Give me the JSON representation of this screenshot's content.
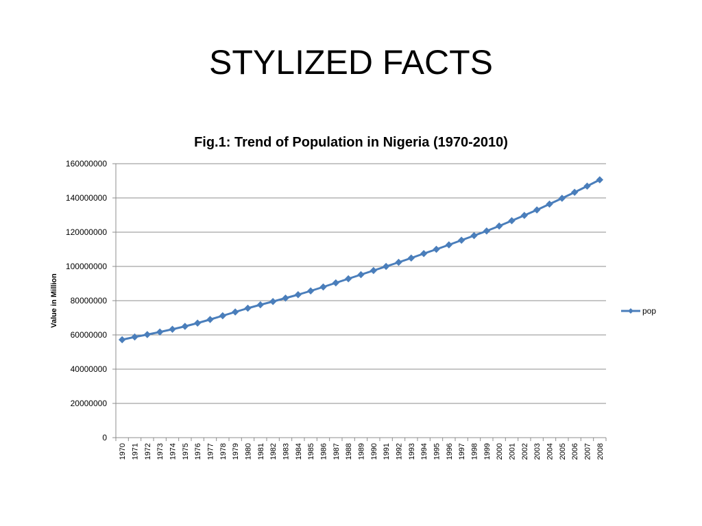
{
  "slide": {
    "title": "STYLIZED FACTS"
  },
  "chart_data": {
    "type": "line",
    "title": "Fig.1: Trend of Population in Nigeria (1970-2010)",
    "xlabel": "",
    "ylabel": "Value in Million",
    "ylim": [
      0,
      160000000
    ],
    "yticks": [
      "0",
      "20000000",
      "40000000",
      "60000000",
      "80000000",
      "100000000",
      "120000000",
      "140000000",
      "160000000"
    ],
    "grid": true,
    "legend_position": "right",
    "colors": {
      "series": "#4a7ebb",
      "grid": "#8c8c8c",
      "axis": "#8c8c8c"
    },
    "categories": [
      "1970",
      "1971",
      "1972",
      "1973",
      "1974",
      "1975",
      "1976",
      "1977",
      "1978",
      "1979",
      "1980",
      "1981",
      "1982",
      "1983",
      "1984",
      "1985",
      "1986",
      "1987",
      "1988",
      "1989",
      "1990",
      "1991",
      "1992",
      "1993",
      "1994",
      "1995",
      "1996",
      "1997",
      "1998",
      "1999",
      "2000",
      "2001",
      "2002",
      "2003",
      "2004",
      "2005",
      "2006",
      "2007",
      "2008"
    ],
    "series": [
      {
        "name": "pop",
        "values": [
          57200000,
          58800000,
          60200000,
          61700000,
          63300000,
          65000000,
          66900000,
          69000000,
          71200000,
          73400000,
          75600000,
          77600000,
          79500000,
          81500000,
          83500000,
          85700000,
          88000000,
          90400000,
          92800000,
          95200000,
          97600000,
          100000000,
          102400000,
          104900000,
          107500000,
          110000000,
          112600000,
          115300000,
          118000000,
          120700000,
          123600000,
          126700000,
          129800000,
          133000000,
          136400000,
          139800000,
          143300000,
          146900000,
          150600000
        ]
      }
    ]
  }
}
